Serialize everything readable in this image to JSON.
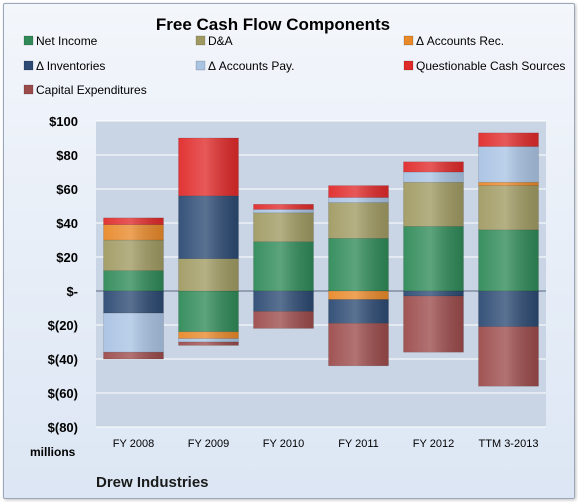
{
  "chart_data": {
    "type": "bar",
    "stacked": true,
    "title": "Free Cash Flow Components",
    "ylabel": "millions",
    "source_label": "Drew Industries",
    "categories": [
      "FY 2008",
      "FY 2009",
      "FY 2010",
      "FY 2011",
      "FY 2012",
      "TTM 3-2013"
    ],
    "ylim": [
      -80,
      100
    ],
    "yticks": [
      100,
      80,
      60,
      40,
      20,
      0,
      -20,
      -40,
      -60,
      -80
    ],
    "ytick_labels": [
      "$100",
      "$80",
      "$60",
      "$40",
      "$20",
      "$-",
      "$(20)",
      "$(40)",
      "$(60)",
      "$(80)"
    ],
    "grid": true,
    "legend_position": "top",
    "series": [
      {
        "name": "Net Income",
        "color": "#2f8a58",
        "values": [
          12,
          -24,
          29,
          31,
          38,
          36
        ]
      },
      {
        "name": "D&A",
        "color": "#a09a62",
        "values": [
          18,
          19,
          17,
          21,
          26,
          26
        ]
      },
      {
        "name": "Δ Accounts Rec.",
        "color": "#e8892a",
        "values": [
          9,
          -4,
          0,
          -5,
          0,
          2
        ]
      },
      {
        "name": "Δ Inventories",
        "color": "#2c4a73",
        "values": [
          -13,
          37,
          -12,
          -14,
          -3,
          -21
        ]
      },
      {
        "name": "Δ Accounts Pay.",
        "color": "#a9c3e3",
        "values": [
          -23,
          -2,
          2,
          3,
          6,
          21
        ]
      },
      {
        "name": "Questionable Cash Sources",
        "color": "#e02a2a",
        "values": [
          4,
          34,
          3,
          7,
          6,
          8
        ]
      },
      {
        "name": "Capital Expenditures",
        "color": "#9c4b4b",
        "values": [
          -4,
          -2,
          -10,
          -25,
          -33,
          -35
        ]
      }
    ]
  }
}
